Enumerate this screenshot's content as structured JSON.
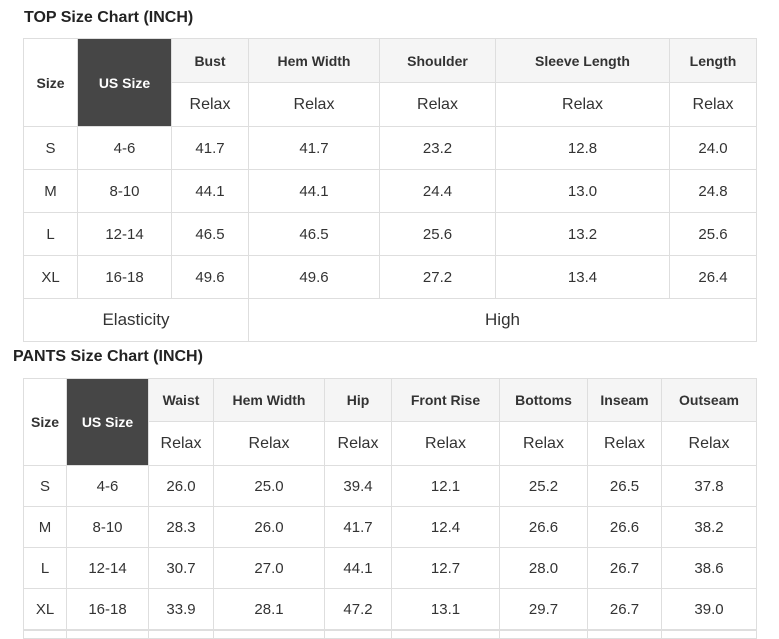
{
  "colors": {
    "page_bg": "#ffffff",
    "table_border": "#dedede",
    "measurement_header_bg": "#f5f5f5",
    "us_size_cell_bg": "#464646",
    "us_size_cell_text": "#ffffff",
    "body_text": "#333333",
    "title_text": "#222222"
  },
  "top_chart": {
    "title": "TOP Size Chart (INCH)",
    "size_label": "Size",
    "us_size_label": "US Size",
    "columns": [
      {
        "label": "Bust",
        "fit": "Relax"
      },
      {
        "label": "Hem Width",
        "fit": "Relax"
      },
      {
        "label": "Shoulder",
        "fit": "Relax"
      },
      {
        "label": "Sleeve Length",
        "fit": "Relax"
      },
      {
        "label": "Length",
        "fit": "Relax"
      }
    ],
    "rows": [
      {
        "size": "S",
        "us_size": "4-6",
        "values": [
          "41.7",
          "41.7",
          "23.2",
          "12.8",
          "24.0"
        ]
      },
      {
        "size": "M",
        "us_size": "8-10",
        "values": [
          "44.1",
          "44.1",
          "24.4",
          "13.0",
          "24.8"
        ]
      },
      {
        "size": "L",
        "us_size": "12-14",
        "values": [
          "46.5",
          "46.5",
          "25.6",
          "13.2",
          "25.6"
        ]
      },
      {
        "size": "XL",
        "us_size": "16-18",
        "values": [
          "49.6",
          "49.6",
          "27.2",
          "13.4",
          "26.4"
        ]
      }
    ],
    "elasticity_label": "Elasticity",
    "elasticity_value": "High"
  },
  "pants_chart": {
    "title": "PANTS Size Chart (INCH)",
    "size_label": "Size",
    "us_size_label": "US Size",
    "columns": [
      {
        "label": "Waist",
        "fit": "Relax"
      },
      {
        "label": "Hem Width",
        "fit": "Relax"
      },
      {
        "label": "Hip",
        "fit": "Relax"
      },
      {
        "label": "Front Rise",
        "fit": "Relax"
      },
      {
        "label": "Bottoms",
        "fit": "Relax"
      },
      {
        "label": "Inseam",
        "fit": "Relax"
      },
      {
        "label": "Outseam",
        "fit": "Relax"
      }
    ],
    "rows": [
      {
        "size": "S",
        "us_size": "4-6",
        "values": [
          "26.0",
          "25.0",
          "39.4",
          "12.1",
          "25.2",
          "26.5",
          "37.8"
        ]
      },
      {
        "size": "M",
        "us_size": "8-10",
        "values": [
          "28.3",
          "26.0",
          "41.7",
          "12.4",
          "26.6",
          "26.6",
          "38.2"
        ]
      },
      {
        "size": "L",
        "us_size": "12-14",
        "values": [
          "30.7",
          "27.0",
          "44.1",
          "12.7",
          "28.0",
          "26.7",
          "38.6"
        ]
      },
      {
        "size": "XL",
        "us_size": "16-18",
        "values": [
          "33.9",
          "28.1",
          "47.2",
          "13.1",
          "29.7",
          "26.7",
          "39.0"
        ]
      }
    ]
  }
}
